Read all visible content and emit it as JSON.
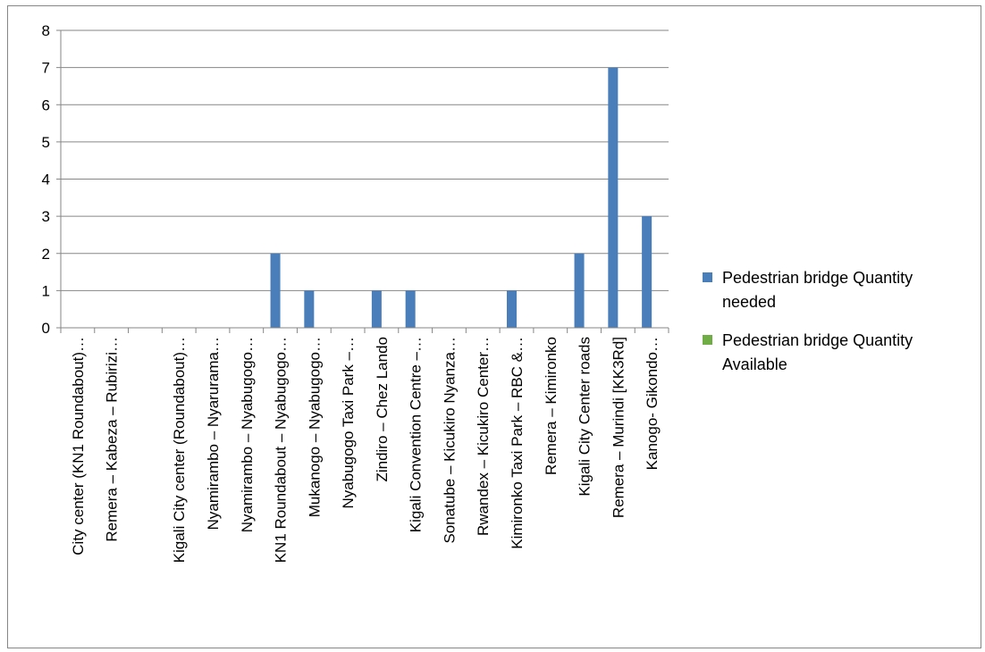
{
  "chart_data": {
    "type": "bar",
    "categories": [
      "City center (KN1 Roundabout)…",
      "Remera – Kabeza – Rubirizi…",
      "",
      "Kigali City center (Roundabout)…",
      "Nyamirambo – Nyarurama…",
      "Nyamirambo – Nyabugogo…",
      "KN1 Roundabout – Nyabugogo…",
      "Mukanogo  –  Nyabugogo…",
      "Nyabugogo Taxi Park –…",
      "Zindiro – Chez Lando",
      "Kigali Convention Centre –…",
      "Sonatube – Kicukiro Nyanza…",
      "Rwandex – Kicukiro Center…",
      "Kimironko Taxi Park – RBC &…",
      "Remera – Kimironko",
      "Kigali City Center roads",
      "Remera – Murindi [KK3Rd]",
      "Kanogo- Gikondo…"
    ],
    "series": [
      {
        "name": "Pedestrian bridge Quantity needed",
        "name_lines": [
          "Pedestrian bridge Quantity",
          "needed"
        ],
        "color": "#4a7ebb",
        "values": [
          0,
          0,
          0,
          0,
          0,
          0,
          2,
          1,
          0,
          1,
          1,
          0,
          0,
          1,
          0,
          2,
          7,
          3
        ]
      },
      {
        "name": "Pedestrian bridge Quantity Available",
        "name_lines": [
          "Pedestrian bridge Quantity",
          "Available"
        ],
        "color": "#70ad47",
        "values": [
          0,
          0,
          0,
          0,
          0,
          0,
          0,
          0,
          0,
          0,
          0,
          0,
          0,
          0,
          0,
          0,
          0,
          0
        ]
      }
    ],
    "ylim": [
      0,
      8
    ],
    "yticks": [
      0,
      1,
      2,
      3,
      4,
      5,
      6,
      7,
      8
    ],
    "grid": true,
    "legend_position": "right",
    "title": "",
    "xlabel": "",
    "ylabel": ""
  }
}
